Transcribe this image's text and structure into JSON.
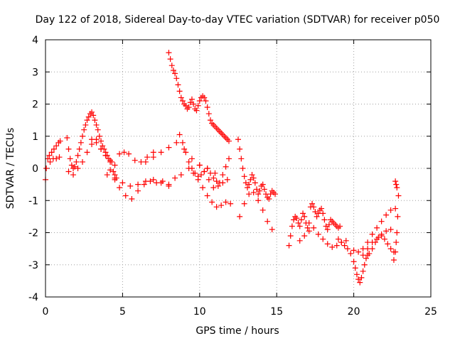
{
  "chart_data": {
    "type": "scatter",
    "title": "Day 122 of 2018, Sidereal Day-to-day VTEC variation (SDTVAR) for receiver p050",
    "xlabel": "GPS time / hours",
    "ylabel": "SDTVAR / TECUs",
    "xlim": [
      0,
      25
    ],
    "ylim": [
      -4,
      4
    ],
    "xticks": [
      0,
      5,
      10,
      15,
      20,
      25
    ],
    "yticks": [
      -4,
      -3,
      -2,
      -1,
      0,
      1,
      2,
      3,
      4
    ],
    "xtick_labels": [
      "0",
      "5",
      "10",
      "15",
      "20",
      "25"
    ],
    "ytick_labels": [
      "-4",
      "-3",
      "-2",
      "-1",
      "0",
      "1",
      "2",
      "3",
      "4"
    ],
    "grid": true,
    "marker": "+",
    "series": [
      {
        "name": "SDTVAR",
        "color": "#ff0000",
        "x": [
          0.0,
          0.05,
          0.15,
          0.25,
          0.4,
          0.55,
          0.7,
          0.85,
          0.95,
          0.3,
          0.5,
          0.7,
          0.9,
          1.4,
          1.5,
          1.6,
          1.7,
          1.8,
          1.9,
          2.0,
          2.1,
          2.2,
          2.3,
          2.4,
          2.5,
          2.6,
          2.7,
          2.8,
          2.9,
          3.0,
          3.1,
          3.2,
          3.3,
          3.4,
          3.5,
          3.6,
          3.7,
          3.8,
          3.9,
          4.0,
          4.1,
          4.2,
          4.3,
          4.4,
          4.5,
          4.6,
          1.5,
          1.8,
          2.1,
          2.4,
          2.7,
          3.0,
          3.3,
          3.6,
          3.9,
          4.2,
          4.5,
          4.8,
          5.1,
          5.4,
          5.8,
          6.2,
          6.6,
          7.0,
          3.0,
          3.3,
          3.6,
          3.9,
          4.2,
          4.5,
          4.8,
          5.2,
          5.6,
          6.0,
          6.4,
          6.8,
          7.2,
          7.6,
          8.0,
          8.4,
          8.8,
          4.0,
          4.5,
          5.0,
          5.5,
          6.0,
          6.5,
          7.0,
          7.5,
          8.0,
          6.5,
          7.0,
          7.5,
          8.0,
          8.5,
          9.0,
          9.5,
          10.0,
          10.5,
          11.0,
          8.0,
          8.1,
          8.2,
          8.3,
          8.4,
          8.5,
          8.6,
          8.7,
          8.8,
          8.9,
          9.0,
          9.1,
          9.2,
          9.3,
          9.4,
          9.5,
          9.6,
          9.7,
          9.8,
          9.9,
          10.0,
          10.1,
          10.2,
          10.3,
          10.4,
          10.5,
          10.6,
          10.7,
          10.8,
          10.9,
          11.0,
          11.1,
          11.2,
          11.3,
          11.4,
          11.5,
          11.6,
          11.7,
          11.8,
          11.9,
          8.7,
          8.9,
          9.1,
          9.3,
          9.5,
          9.7,
          9.9,
          10.1,
          10.3,
          10.5,
          10.7,
          10.9,
          11.1,
          11.3,
          11.5,
          11.7,
          11.9,
          9.3,
          9.6,
          9.9,
          10.2,
          10.5,
          10.8,
          11.1,
          11.4,
          11.7,
          12.0,
          10.0,
          10.3,
          10.6,
          10.9,
          11.2,
          11.5,
          11.8,
          12.5,
          12.6,
          12.7,
          12.8,
          12.9,
          13.0,
          13.1,
          13.2,
          13.3,
          13.4,
          13.5,
          13.6,
          13.7,
          13.8,
          13.9,
          14.0,
          14.1,
          14.2,
          14.3,
          14.4,
          14.5,
          14.6,
          14.7,
          14.8,
          14.9,
          12.6,
          12.9,
          13.2,
          13.5,
          13.8,
          14.1,
          14.4,
          14.7,
          15.8,
          15.9,
          16.0,
          16.1,
          16.2,
          16.3,
          16.4,
          16.5,
          16.6,
          16.7,
          16.8,
          16.9,
          17.0,
          17.1,
          17.2,
          17.3,
          17.4,
          17.5,
          17.6,
          17.7,
          17.8,
          17.9,
          18.0,
          18.1,
          18.2,
          18.3,
          18.4,
          18.5,
          18.6,
          18.7,
          18.8,
          18.9,
          19.0,
          19.1,
          16.5,
          16.8,
          17.1,
          17.4,
          17.7,
          18.0,
          18.3,
          18.6,
          18.9,
          19.2,
          19.5,
          19.0,
          19.2,
          19.4,
          19.6,
          19.8,
          20.0,
          20.1,
          20.2,
          20.3,
          20.4,
          20.5,
          20.6,
          20.7,
          20.8,
          20.9,
          21.0,
          21.2,
          21.4,
          21.6,
          21.8,
          22.0,
          22.2,
          22.4,
          22.6,
          20.0,
          20.3,
          20.6,
          20.9,
          21.2,
          21.5,
          21.8,
          22.1,
          22.4,
          20.6,
          20.9,
          21.2,
          21.5,
          21.8,
          22.1,
          22.4,
          22.7,
          22.6,
          22.7,
          22.75,
          22.8,
          22.85,
          22.9,
          22.8,
          22.75,
          22.7
        ],
        "y": [
          -0.35,
          0.0,
          0.3,
          0.4,
          0.5,
          0.6,
          0.7,
          0.8,
          0.85,
          0.2,
          0.3,
          0.3,
          0.35,
          0.95,
          0.6,
          0.3,
          0.1,
          0.0,
          0.05,
          0.2,
          0.4,
          0.6,
          0.8,
          1.0,
          1.2,
          1.35,
          1.5,
          1.6,
          1.7,
          1.75,
          1.65,
          1.5,
          1.35,
          1.2,
          1.0,
          0.85,
          0.7,
          0.6,
          0.5,
          0.4,
          0.3,
          0.25,
          0.2,
          -0.1,
          -0.2,
          -0.3,
          -0.1,
          -0.2,
          0.0,
          0.2,
          0.5,
          0.9,
          0.8,
          0.6,
          0.4,
          0.2,
          0.1,
          0.45,
          0.5,
          0.45,
          0.25,
          0.2,
          0.35,
          0.5,
          0.75,
          0.9,
          0.6,
          0.4,
          -0.05,
          -0.3,
          -0.6,
          -0.85,
          -0.95,
          -0.7,
          -0.5,
          -0.4,
          -0.45,
          -0.4,
          -0.5,
          -0.3,
          -0.2,
          -0.2,
          -0.35,
          -0.45,
          -0.55,
          -0.5,
          -0.4,
          -0.35,
          -0.45,
          -0.55,
          0.2,
          0.35,
          0.5,
          0.65,
          0.8,
          0.6,
          0.3,
          0.1,
          0.0,
          -0.15,
          3.6,
          3.4,
          3.2,
          3.05,
          2.95,
          2.8,
          2.6,
          2.4,
          2.2,
          2.1,
          2.0,
          1.95,
          1.85,
          1.9,
          2.05,
          2.15,
          2.0,
          1.85,
          1.8,
          1.95,
          2.1,
          2.2,
          2.25,
          2.2,
          2.1,
          1.9,
          1.7,
          1.5,
          1.4,
          1.35,
          1.3,
          1.25,
          1.2,
          1.15,
          1.1,
          1.05,
          1.0,
          0.95,
          0.9,
          0.85,
          1.05,
          0.8,
          0.5,
          0.2,
          0.0,
          -0.15,
          -0.25,
          -0.2,
          -0.1,
          0.0,
          -0.15,
          -0.3,
          -0.4,
          -0.45,
          -0.2,
          0.05,
          0.3,
          0.0,
          -0.15,
          -0.35,
          -0.6,
          -0.85,
          -1.05,
          -1.2,
          -1.15,
          -1.05,
          -1.1,
          0.1,
          -0.1,
          -0.35,
          -0.6,
          -0.55,
          -0.45,
          -0.35,
          0.9,
          0.6,
          0.3,
          0.0,
          -0.25,
          -0.45,
          -0.6,
          -0.5,
          -0.35,
          -0.2,
          -0.3,
          -0.45,
          -0.65,
          -0.8,
          -0.7,
          -0.55,
          -0.5,
          -0.65,
          -0.8,
          -0.9,
          -0.95,
          -0.8,
          -0.7,
          -0.75,
          -0.8,
          -1.5,
          -1.1,
          -0.8,
          -0.75,
          -1.0,
          -1.3,
          -1.65,
          -1.9,
          -2.4,
          -2.1,
          -1.8,
          -1.6,
          -1.5,
          -1.55,
          -1.7,
          -1.8,
          -1.6,
          -1.4,
          -1.5,
          -1.7,
          -1.85,
          -1.7,
          -1.2,
          -1.1,
          -1.2,
          -1.35,
          -1.5,
          -1.4,
          -1.3,
          -1.25,
          -1.4,
          -1.6,
          -1.8,
          -1.9,
          -1.75,
          -1.6,
          -1.65,
          -1.7,
          -1.75,
          -1.8,
          -1.85,
          -1.8,
          -2.25,
          -2.1,
          -1.95,
          -1.85,
          -2.05,
          -2.2,
          -2.35,
          -2.45,
          -2.4,
          -2.3,
          -2.25,
          -2.2,
          -2.3,
          -2.4,
          -2.5,
          -2.65,
          -2.9,
          -3.1,
          -3.3,
          -3.45,
          -3.55,
          -3.4,
          -3.2,
          -3.0,
          -2.8,
          -2.7,
          -2.65,
          -2.5,
          -2.3,
          -2.15,
          -2.1,
          -2.2,
          -2.35,
          -2.5,
          -2.6,
          -2.55,
          -2.6,
          -2.7,
          -2.5,
          -2.3,
          -2.2,
          -2.05,
          -1.95,
          -1.9,
          -2.5,
          -2.3,
          -2.05,
          -1.85,
          -1.65,
          -1.45,
          -1.3,
          -1.25,
          -2.85,
          -2.6,
          -2.3,
          -2.0,
          -1.5,
          -0.85,
          -0.6,
          -0.5,
          -0.4
        ]
      }
    ]
  }
}
